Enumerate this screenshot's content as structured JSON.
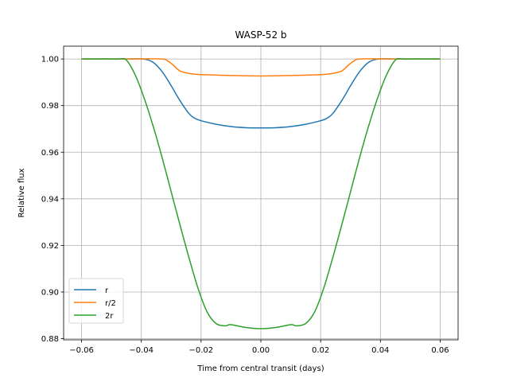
{
  "chart_data": {
    "type": "line",
    "title": "WASP-52 b",
    "xlabel": "Time from central transit (days)",
    "ylabel": "Relative flux",
    "xlim": [
      -0.066,
      0.066
    ],
    "ylim": [
      0.8795,
      1.0055
    ],
    "xticks": [
      -0.06,
      -0.04,
      -0.02,
      0.0,
      0.02,
      0.04,
      0.06
    ],
    "xtick_labels": [
      "−0.06",
      "−0.04",
      "−0.02",
      "0.00",
      "0.02",
      "0.04",
      "0.06"
    ],
    "yticks": [
      0.88,
      0.9,
      0.92,
      0.94,
      0.96,
      0.98,
      1.0
    ],
    "ytick_labels": [
      "0.88",
      "0.90",
      "0.92",
      "0.94",
      "0.96",
      "0.98",
      "1.00"
    ],
    "grid": true,
    "legend_position": "lower-left",
    "series": [
      {
        "name": "r",
        "color": "#1f77b4",
        "x": [
          -0.06,
          -0.045,
          -0.0393,
          -0.036,
          -0.033,
          -0.03,
          -0.027,
          -0.024,
          -0.022,
          -0.02,
          -0.015,
          -0.01,
          -0.005,
          0.0,
          0.005,
          0.01,
          0.015,
          0.02,
          0.022,
          0.024,
          0.027,
          0.03,
          0.033,
          0.036,
          0.0393,
          0.045,
          0.06
        ],
        "y": [
          1.0,
          1.0,
          1.0,
          0.9985,
          0.9945,
          0.9885,
          0.982,
          0.9765,
          0.9745,
          0.9735,
          0.972,
          0.971,
          0.9705,
          0.9704,
          0.9705,
          0.971,
          0.972,
          0.9735,
          0.9745,
          0.9765,
          0.982,
          0.9885,
          0.9945,
          0.9985,
          1.0,
          1.0,
          1.0
        ]
      },
      {
        "name": "r/2",
        "color": "#ff7f0e",
        "x": [
          -0.06,
          -0.045,
          -0.0335,
          -0.031,
          -0.029,
          -0.027,
          -0.024,
          -0.02,
          -0.01,
          0.0,
          0.01,
          0.02,
          0.024,
          0.027,
          0.029,
          0.031,
          0.0335,
          0.045,
          0.06
        ],
        "y": [
          1.0,
          1.0,
          1.0,
          0.999,
          0.997,
          0.9948,
          0.9938,
          0.9933,
          0.9929,
          0.9927,
          0.9929,
          0.9933,
          0.9938,
          0.9948,
          0.997,
          0.999,
          1.0,
          1.0,
          1.0
        ]
      },
      {
        "name": "2r",
        "color": "#2ca02c",
        "x": [
          -0.06,
          -0.048,
          -0.045,
          -0.042,
          -0.039,
          -0.036,
          -0.033,
          -0.03,
          -0.027,
          -0.024,
          -0.021,
          -0.018,
          -0.015,
          -0.012,
          -0.01,
          -0.005,
          0.0,
          0.005,
          0.01,
          0.012,
          0.015,
          0.018,
          0.021,
          0.024,
          0.027,
          0.03,
          0.033,
          0.036,
          0.039,
          0.042,
          0.045,
          0.048,
          0.06
        ],
        "y": [
          1.0,
          1.0,
          0.9995,
          0.993,
          0.983,
          0.971,
          0.9575,
          0.943,
          0.9285,
          0.9145,
          0.9015,
          0.8915,
          0.8865,
          0.8855,
          0.886,
          0.8848,
          0.8843,
          0.8848,
          0.886,
          0.8855,
          0.8865,
          0.8915,
          0.9015,
          0.9145,
          0.9285,
          0.943,
          0.9575,
          0.971,
          0.983,
          0.993,
          0.9995,
          1.0,
          1.0
        ]
      }
    ]
  }
}
